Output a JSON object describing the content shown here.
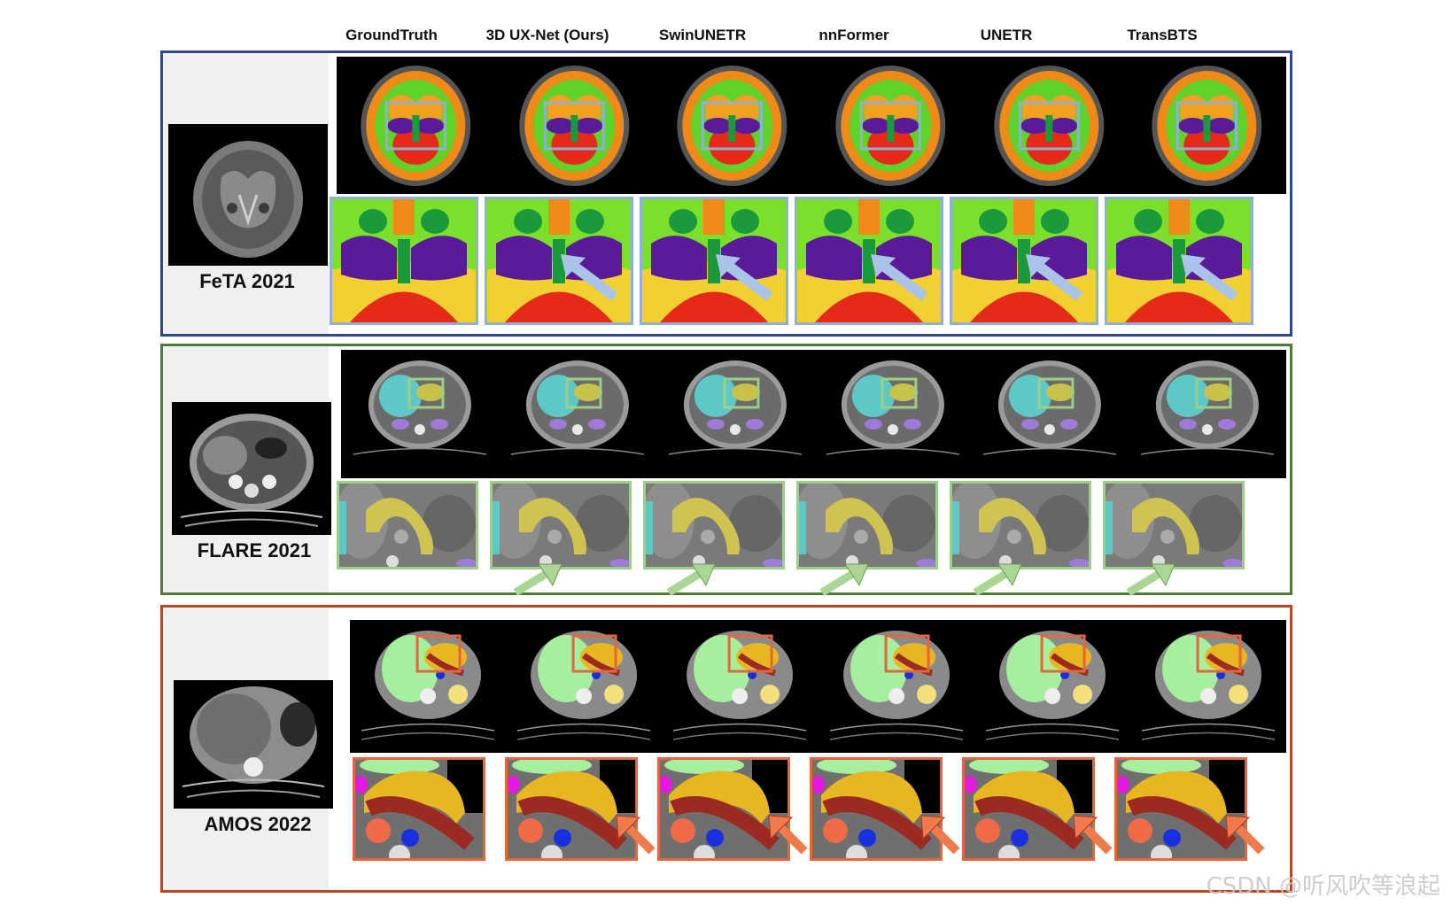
{
  "columns": [
    "GroundTruth",
    "3D UX-Net (Ours)",
    "SwinUNETR",
    "nnFormer",
    "UNETR",
    "TransBTS"
  ],
  "datasets": [
    {
      "label": "FeTA 2021",
      "frame_color": "#2f4a8c",
      "box_color": "#8fb0d8",
      "arrow_color": "#a9c4e8"
    },
    {
      "label": "FLARE 2021",
      "frame_color": "#4e7a35",
      "box_color": "#9ccf86",
      "arrow_color": "#a9d693"
    },
    {
      "label": "AMOS 2022",
      "frame_color": "#c0441f",
      "box_color": "#e8643a",
      "arrow_color": "#f07a4c"
    }
  ],
  "watermark": "CSDN @听风吹等浪起"
}
